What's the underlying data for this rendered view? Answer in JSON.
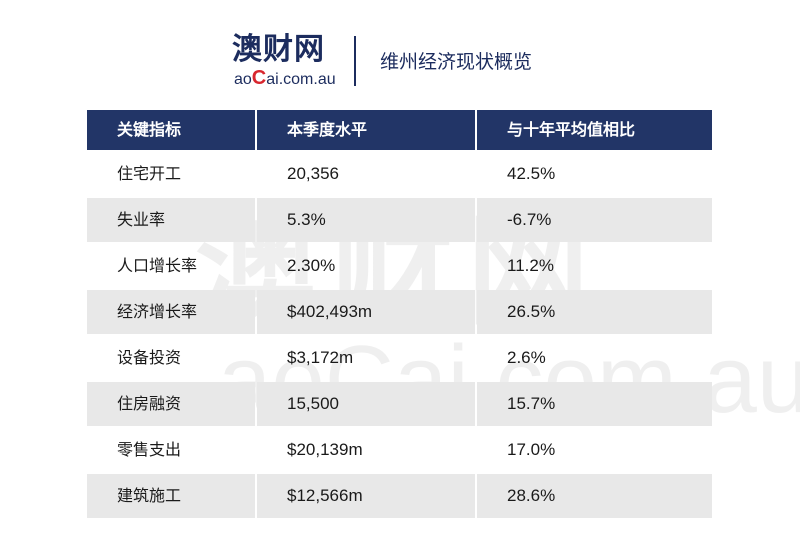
{
  "logo": {
    "cn": "澳财网",
    "en_pre": "ao",
    "en_c": "C",
    "en_post": "ai.com.au"
  },
  "header": {
    "title": "维州经济现状概览"
  },
  "watermark": {
    "cn": "澳财网",
    "en": "aoCai.com.au"
  },
  "table": {
    "columns": [
      "关键指标",
      "本季度水平",
      "与十年平均值相比"
    ],
    "rows": [
      [
        "住宅开工",
        "20,356",
        "42.5%"
      ],
      [
        "失业率",
        "5.3%",
        "-6.7%"
      ],
      [
        "人口增长率",
        "2.30%",
        "11.2%"
      ],
      [
        "经济增长率",
        "$402,493m",
        "26.5%"
      ],
      [
        "设备投资",
        "$3,172m",
        "2.6%"
      ],
      [
        "住房融资",
        "15,500",
        "15.7%"
      ],
      [
        "零售支出",
        "$20,139m",
        "17.0%"
      ],
      [
        "建筑施工",
        "$12,566m",
        "28.6%"
      ]
    ]
  },
  "colors": {
    "header_bg": "#223567",
    "brand_navy": "#1c2c5e",
    "brand_red": "#d8262e",
    "stripe": "#e8e8e8"
  }
}
